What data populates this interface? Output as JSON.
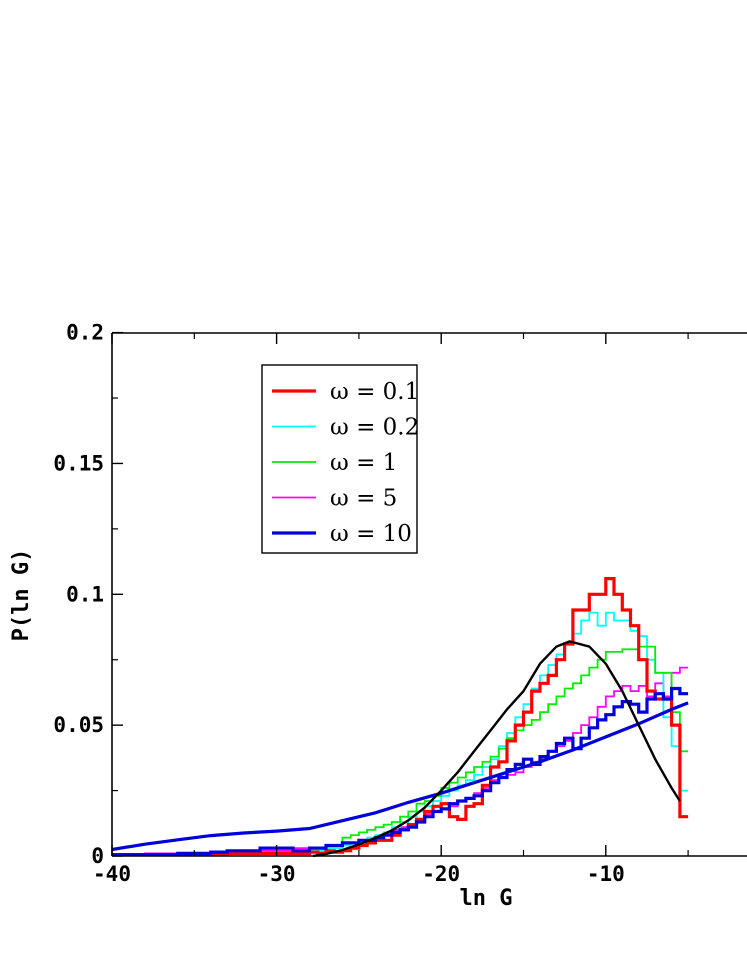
{
  "chart_data": {
    "type": "line",
    "title": "",
    "xlabel": "ln G",
    "ylabel": "P(ln G)",
    "xlim": [
      -40,
      0
    ],
    "ylim": [
      0,
      0.2
    ],
    "visible_xlim": [
      -40,
      -5.2
    ],
    "x_ticks": [
      -40,
      -30,
      -20,
      -10
    ],
    "x_tick_labels": [
      "-40",
      "-30",
      "-20",
      "-10"
    ],
    "y_ticks": [
      0,
      0.05,
      0.1,
      0.15,
      0.2
    ],
    "y_tick_labels": [
      "0",
      "0.05",
      "0.1",
      "0.15",
      "0.2"
    ],
    "grid": false,
    "legend_position": "top-left",
    "series": [
      {
        "name": "ω = 0.1",
        "kind": "histogram",
        "color": "#ff0000",
        "width": 3.2,
        "points": [
          [
            -40,
            0.0005
          ],
          [
            -39,
            0.0005
          ],
          [
            -38,
            0.0005
          ],
          [
            -37,
            0.0005
          ],
          [
            -36,
            0.0005
          ],
          [
            -35,
            0.0005
          ],
          [
            -34,
            0.0005
          ],
          [
            -33,
            0.001
          ],
          [
            -32,
            0.001
          ],
          [
            -31,
            0.001
          ],
          [
            -30,
            0.001
          ],
          [
            -29,
            0.001
          ],
          [
            -28,
            0.0015
          ],
          [
            -27.5,
            0.001
          ],
          [
            -27,
            0.002
          ],
          [
            -26.5,
            0.0015
          ],
          [
            -26,
            0.002
          ],
          [
            -25.5,
            0.003
          ],
          [
            -25,
            0.004
          ],
          [
            -24.5,
            0.005
          ],
          [
            -24,
            0.006
          ],
          [
            -23.5,
            0.006
          ],
          [
            -23,
            0.008
          ],
          [
            -22.5,
            0.01
          ],
          [
            -22,
            0.012
          ],
          [
            -21.5,
            0.014
          ],
          [
            -21,
            0.017
          ],
          [
            -20.5,
            0.019
          ],
          [
            -20,
            0.02
          ],
          [
            -19.5,
            0.015
          ],
          [
            -19,
            0.014
          ],
          [
            -18.5,
            0.019
          ],
          [
            -18,
            0.02
          ],
          [
            -17.5,
            0.027
          ],
          [
            -17,
            0.034
          ],
          [
            -16.5,
            0.036
          ],
          [
            -16,
            0.044
          ],
          [
            -15.5,
            0.05
          ],
          [
            -15,
            0.055
          ],
          [
            -14.5,
            0.063
          ],
          [
            -14,
            0.066
          ],
          [
            -13.5,
            0.069
          ],
          [
            -13,
            0.075
          ],
          [
            -12.5,
            0.081
          ],
          [
            -12,
            0.094
          ],
          [
            -11.5,
            0.094
          ],
          [
            -11,
            0.1
          ],
          [
            -10.5,
            0.1
          ],
          [
            -10,
            0.106
          ],
          [
            -9.5,
            0.1
          ],
          [
            -9,
            0.094
          ],
          [
            -8.5,
            0.088
          ],
          [
            -8,
            0.075
          ],
          [
            -7.5,
            0.063
          ],
          [
            -7,
            0.06
          ],
          [
            -6.5,
            0.06
          ],
          [
            -6,
            0.05
          ],
          [
            -5.5,
            0.015
          ]
        ]
      },
      {
        "name": "ω = 0.2",
        "kind": "histogram",
        "color": "#00ffff",
        "width": 1.8,
        "points": [
          [
            -40,
            0.0005
          ],
          [
            -38,
            0.0005
          ],
          [
            -36,
            0.0005
          ],
          [
            -34,
            0.001
          ],
          [
            -32,
            0.001
          ],
          [
            -30,
            0.001
          ],
          [
            -29,
            0.002
          ],
          [
            -28,
            0.002
          ],
          [
            -27,
            0.003
          ],
          [
            -26,
            0.004
          ],
          [
            -25.5,
            0.005
          ],
          [
            -25,
            0.005
          ],
          [
            -24.5,
            0.007
          ],
          [
            -24,
            0.008
          ],
          [
            -23.5,
            0.009
          ],
          [
            -23,
            0.011
          ],
          [
            -22.5,
            0.013
          ],
          [
            -22,
            0.015
          ],
          [
            -21.5,
            0.017
          ],
          [
            -21,
            0.019
          ],
          [
            -20.5,
            0.021
          ],
          [
            -20,
            0.023
          ],
          [
            -19.5,
            0.025
          ],
          [
            -19,
            0.027
          ],
          [
            -18.5,
            0.029
          ],
          [
            -18,
            0.031
          ],
          [
            -17.5,
            0.034
          ],
          [
            -17,
            0.037
          ],
          [
            -16.5,
            0.042
          ],
          [
            -16,
            0.047
          ],
          [
            -15.5,
            0.053
          ],
          [
            -15,
            0.058
          ],
          [
            -14.5,
            0.064
          ],
          [
            -14,
            0.069
          ],
          [
            -13.5,
            0.073
          ],
          [
            -13,
            0.077
          ],
          [
            -12.5,
            0.081
          ],
          [
            -12,
            0.085
          ],
          [
            -11.5,
            0.09
          ],
          [
            -11,
            0.093
          ],
          [
            -10.5,
            0.088
          ],
          [
            -10,
            0.093
          ],
          [
            -9.5,
            0.09
          ],
          [
            -9,
            0.09
          ],
          [
            -8.5,
            0.086
          ],
          [
            -8,
            0.084
          ],
          [
            -7.5,
            0.075
          ],
          [
            -7,
            0.07
          ],
          [
            -6.5,
            0.053
          ],
          [
            -6,
            0.042
          ],
          [
            -5.5,
            0.025
          ]
        ]
      },
      {
        "name": "ω = 1",
        "kind": "histogram",
        "color": "#00ee00",
        "width": 1.8,
        "points": [
          [
            -40,
            0.0005
          ],
          [
            -38,
            0.0005
          ],
          [
            -36,
            0.001
          ],
          [
            -34,
            0.001
          ],
          [
            -32,
            0.001
          ],
          [
            -30,
            0.0015
          ],
          [
            -29,
            0.002
          ],
          [
            -28,
            0.003
          ],
          [
            -27,
            0.004
          ],
          [
            -26,
            0.007
          ],
          [
            -25.5,
            0.008
          ],
          [
            -25,
            0.009
          ],
          [
            -24.5,
            0.01
          ],
          [
            -24,
            0.011
          ],
          [
            -23.5,
            0.012
          ],
          [
            -23,
            0.013
          ],
          [
            -22.5,
            0.015
          ],
          [
            -22,
            0.017
          ],
          [
            -21.5,
            0.02
          ],
          [
            -21,
            0.021
          ],
          [
            -20.5,
            0.023
          ],
          [
            -20,
            0.026
          ],
          [
            -19.5,
            0.028
          ],
          [
            -19,
            0.03
          ],
          [
            -18.5,
            0.032
          ],
          [
            -18,
            0.034
          ],
          [
            -17.5,
            0.036
          ],
          [
            -17,
            0.038
          ],
          [
            -16.5,
            0.041
          ],
          [
            -16,
            0.045
          ],
          [
            -15.5,
            0.048
          ],
          [
            -15,
            0.05
          ],
          [
            -14.5,
            0.052
          ],
          [
            -14,
            0.055
          ],
          [
            -13.5,
            0.058
          ],
          [
            -13,
            0.061
          ],
          [
            -12.5,
            0.064
          ],
          [
            -12,
            0.066
          ],
          [
            -11.5,
            0.069
          ],
          [
            -11,
            0.072
          ],
          [
            -10.5,
            0.075
          ],
          [
            -10,
            0.078
          ],
          [
            -9,
            0.079
          ],
          [
            -8,
            0.08
          ],
          [
            -7,
            0.07
          ],
          [
            -6,
            0.055
          ],
          [
            -5.5,
            0.04
          ]
        ]
      },
      {
        "name": "ω = 5",
        "kind": "histogram",
        "color": "#ff00ff",
        "width": 1.8,
        "points": [
          [
            -40,
            0.0005
          ],
          [
            -38,
            0.001
          ],
          [
            -36,
            0.001
          ],
          [
            -34,
            0.0015
          ],
          [
            -32,
            0.002
          ],
          [
            -30,
            0.002
          ],
          [
            -29,
            0.003
          ],
          [
            -28,
            0.003
          ],
          [
            -27,
            0.004
          ],
          [
            -26,
            0.005
          ],
          [
            -25,
            0.006
          ],
          [
            -24,
            0.007
          ],
          [
            -23.5,
            0.009
          ],
          [
            -23,
            0.01
          ],
          [
            -22.5,
            0.011
          ],
          [
            -22,
            0.012
          ],
          [
            -21.5,
            0.014
          ],
          [
            -21,
            0.016
          ],
          [
            -20.5,
            0.017
          ],
          [
            -20,
            0.018
          ],
          [
            -19.5,
            0.019
          ],
          [
            -19,
            0.021
          ],
          [
            -18.5,
            0.022
          ],
          [
            -18,
            0.024
          ],
          [
            -17.5,
            0.026
          ],
          [
            -17,
            0.029
          ],
          [
            -16.5,
            0.03
          ],
          [
            -16,
            0.031
          ],
          [
            -15.5,
            0.032
          ],
          [
            -15,
            0.034
          ],
          [
            -14.5,
            0.036
          ],
          [
            -14,
            0.037
          ],
          [
            -13.5,
            0.04
          ],
          [
            -13,
            0.042
          ],
          [
            -12.5,
            0.044
          ],
          [
            -12,
            0.047
          ],
          [
            -11.5,
            0.05
          ],
          [
            -11,
            0.053
          ],
          [
            -10.5,
            0.057
          ],
          [
            -10,
            0.061
          ],
          [
            -9.5,
            0.063
          ],
          [
            -9,
            0.065
          ],
          [
            -8.5,
            0.063
          ],
          [
            -8,
            0.065
          ],
          [
            -7.5,
            0.061
          ],
          [
            -7,
            0.066
          ],
          [
            -6.5,
            0.061
          ],
          [
            -6,
            0.07
          ],
          [
            -5.5,
            0.072
          ]
        ]
      },
      {
        "name": "ω = 10",
        "kind": "histogram",
        "color": "#0000dd",
        "width": 3.2,
        "points": [
          [
            -40,
            0.0005
          ],
          [
            -38,
            0.0005
          ],
          [
            -36,
            0.001
          ],
          [
            -34,
            0.0015
          ],
          [
            -33,
            0.002
          ],
          [
            -32,
            0.002
          ],
          [
            -31,
            0.003
          ],
          [
            -30,
            0.003
          ],
          [
            -29,
            0.002
          ],
          [
            -28,
            0.003
          ],
          [
            -27,
            0.004
          ],
          [
            -26,
            0.005
          ],
          [
            -25,
            0.006
          ],
          [
            -24,
            0.007
          ],
          [
            -23.5,
            0.008
          ],
          [
            -23,
            0.009
          ],
          [
            -22.5,
            0.01
          ],
          [
            -22,
            0.011
          ],
          [
            -21.5,
            0.013
          ],
          [
            -21,
            0.015
          ],
          [
            -20.5,
            0.017
          ],
          [
            -20,
            0.018
          ],
          [
            -19.5,
            0.02
          ],
          [
            -19,
            0.021
          ],
          [
            -18.5,
            0.022
          ],
          [
            -18,
            0.023
          ],
          [
            -17.5,
            0.025
          ],
          [
            -17,
            0.028
          ],
          [
            -16.5,
            0.03
          ],
          [
            -16,
            0.033
          ],
          [
            -15.5,
            0.035
          ],
          [
            -15,
            0.037
          ],
          [
            -14.5,
            0.035
          ],
          [
            -14,
            0.038
          ],
          [
            -13.5,
            0.04
          ],
          [
            -13,
            0.043
          ],
          [
            -12.5,
            0.045
          ],
          [
            -12,
            0.041
          ],
          [
            -11.5,
            0.045
          ],
          [
            -11,
            0.049
          ],
          [
            -10.5,
            0.052
          ],
          [
            -10,
            0.054
          ],
          [
            -9.5,
            0.057
          ],
          [
            -9,
            0.059
          ],
          [
            -8.5,
            0.058
          ],
          [
            -8,
            0.055
          ],
          [
            -7.5,
            0.06
          ],
          [
            -7,
            0.062
          ],
          [
            -6.5,
            0.06
          ],
          [
            -6,
            0.064
          ],
          [
            -5.5,
            0.062
          ]
        ]
      },
      {
        "name": "",
        "kind": "curve",
        "color": "#0000dd",
        "width": 3.2,
        "points": [
          [
            -40,
            0.0025
          ],
          [
            -38,
            0.0045
          ],
          [
            -36,
            0.0062
          ],
          [
            -34,
            0.0078
          ],
          [
            -32,
            0.0088
          ],
          [
            -30,
            0.0095
          ],
          [
            -28,
            0.0105
          ],
          [
            -26,
            0.0135
          ],
          [
            -24,
            0.0165
          ],
          [
            -22,
            0.0205
          ],
          [
            -20,
            0.024
          ],
          [
            -18,
            0.028
          ],
          [
            -16,
            0.032
          ],
          [
            -14,
            0.036
          ],
          [
            -12,
            0.0405
          ],
          [
            -10,
            0.0455
          ],
          [
            -8,
            0.0505
          ],
          [
            -6,
            0.056
          ],
          [
            -5,
            0.0585
          ]
        ]
      },
      {
        "name": "",
        "kind": "curve",
        "color": "#000000",
        "width": 2.4,
        "points": [
          [
            -27.8,
            0
          ],
          [
            -27,
            0.0008
          ],
          [
            -26,
            0.0023
          ],
          [
            -25,
            0.0044
          ],
          [
            -24,
            0.0069
          ],
          [
            -23,
            0.0098
          ],
          [
            -22,
            0.0136
          ],
          [
            -21,
            0.0185
          ],
          [
            -20,
            0.025
          ],
          [
            -19,
            0.032
          ],
          [
            -18,
            0.04
          ],
          [
            -17,
            0.048
          ],
          [
            -16,
            0.056
          ],
          [
            -15,
            0.063
          ],
          [
            -14,
            0.0735
          ],
          [
            -13,
            0.08
          ],
          [
            -12.2,
            0.082
          ],
          [
            -11,
            0.08
          ],
          [
            -10,
            0.0735
          ],
          [
            -9,
            0.063
          ],
          [
            -8,
            0.05
          ],
          [
            -7,
            0.037
          ],
          [
            -6,
            0.026
          ],
          [
            -5.5,
            0.021
          ]
        ]
      }
    ]
  }
}
